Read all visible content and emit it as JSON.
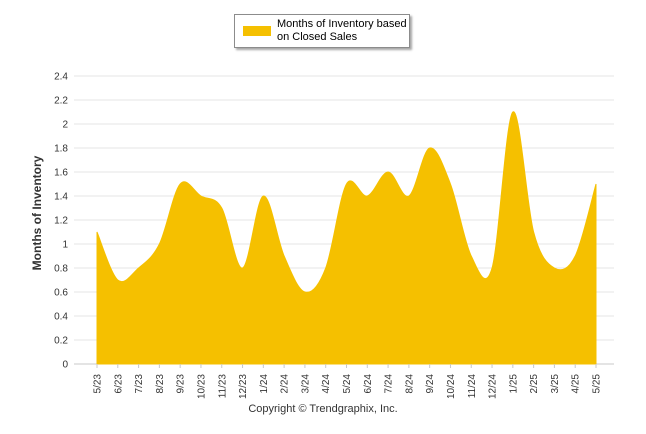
{
  "legend": {
    "label": "Months of Inventory based on Closed Sales"
  },
  "footer": {
    "copyright": "Copyright © Trendgraphix, Inc."
  },
  "colors": {
    "area_fill": "#f5c000",
    "grid": "#e6e6e6",
    "axis_text": "#333333"
  },
  "chart_data": {
    "type": "area",
    "ylabel": "Months of Inventory",
    "xlabel": "",
    "ylim": [
      0,
      2.4
    ],
    "yticks": [
      "0",
      "0.2",
      "0.4",
      "0.6",
      "0.8",
      "1",
      "1.2",
      "1.4",
      "1.6",
      "1.8",
      "2",
      "2.2",
      "2.4"
    ],
    "grid": true,
    "legend_position": "top-center",
    "categories": [
      "5/23",
      "6/23",
      "7/23",
      "8/23",
      "9/23",
      "10/23",
      "11/23",
      "12/23",
      "1/24",
      "2/24",
      "3/24",
      "4/24",
      "5/24",
      "6/24",
      "7/24",
      "8/24",
      "9/24",
      "10/24",
      "11/24",
      "12/24",
      "1/25",
      "2/25",
      "3/25",
      "4/25",
      "5/25"
    ],
    "series": [
      {
        "name": "Months of Inventory based on Closed Sales",
        "values": [
          1.1,
          0.7,
          0.8,
          1.0,
          1.5,
          1.4,
          1.3,
          0.8,
          1.4,
          0.9,
          0.6,
          0.8,
          1.5,
          1.4,
          1.6,
          1.4,
          1.8,
          1.5,
          0.9,
          0.8,
          2.1,
          1.1,
          0.8,
          0.9,
          1.5
        ]
      }
    ]
  }
}
